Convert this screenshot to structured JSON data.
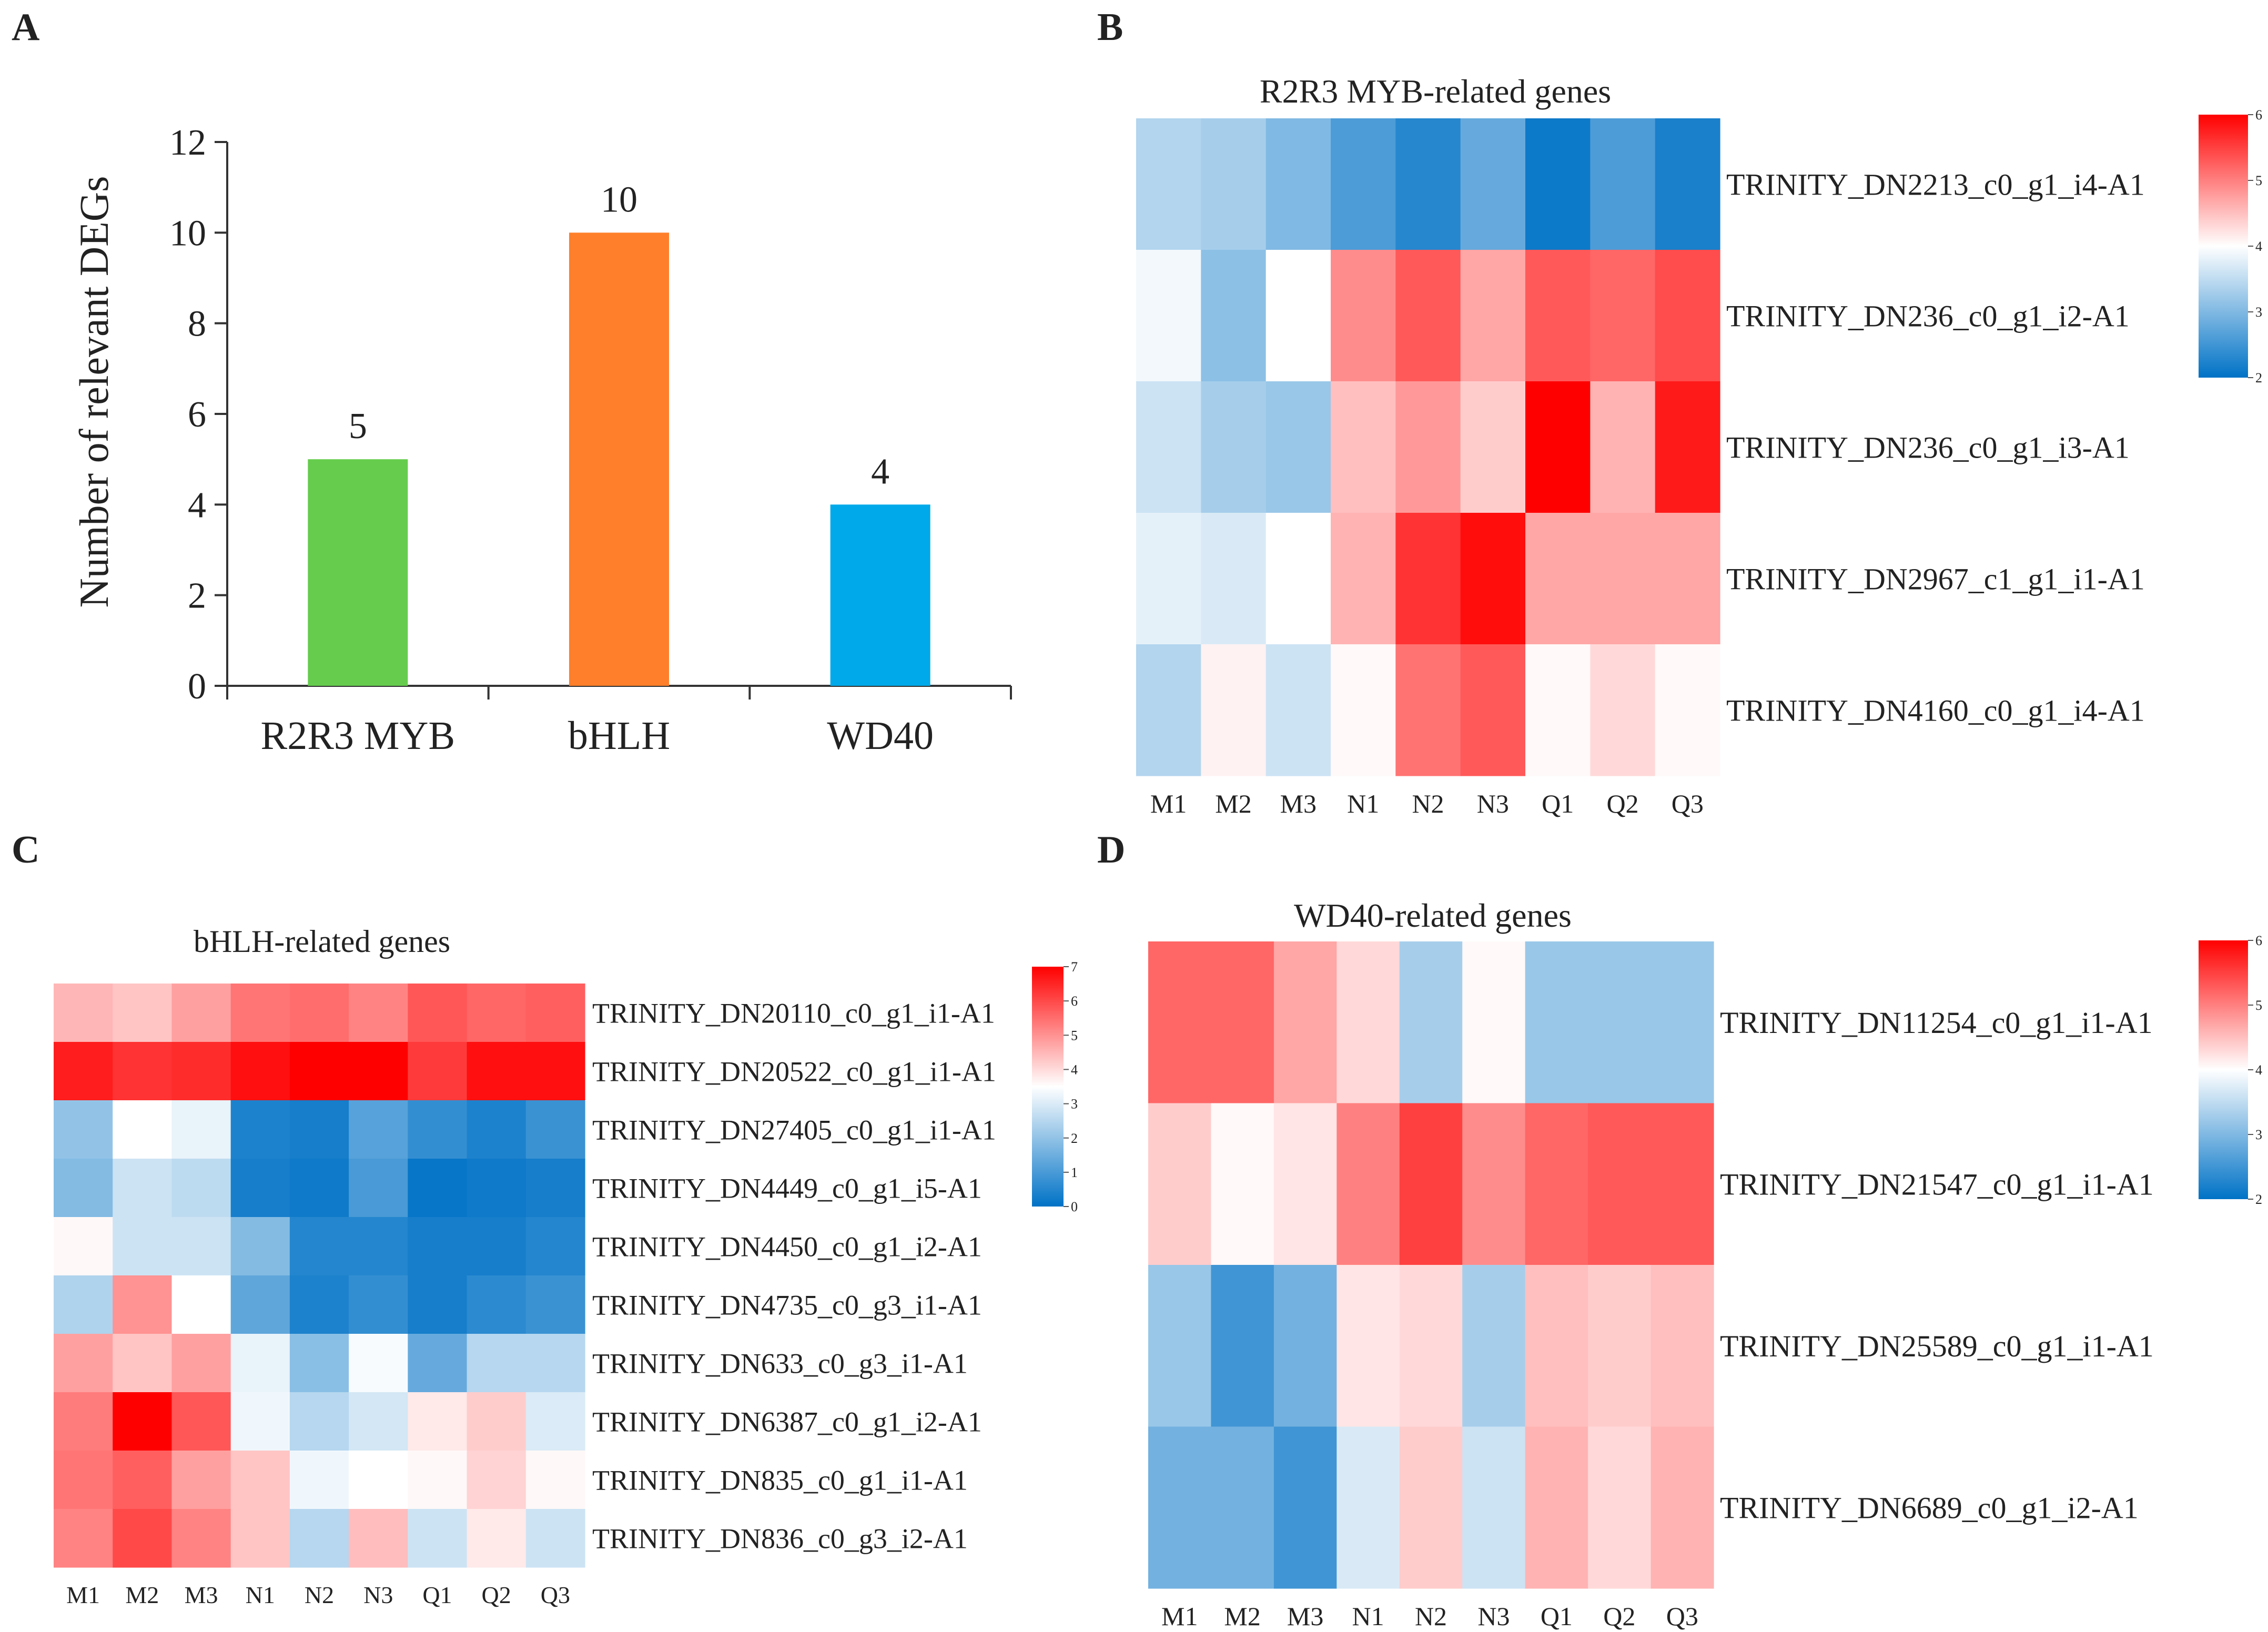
{
  "panels": [
    {
      "letter": "A"
    },
    {
      "letter": "B"
    },
    {
      "letter": "C"
    },
    {
      "letter": "D"
    }
  ],
  "chart_data": [
    {
      "panel": "A",
      "type": "bar",
      "title": "",
      "xlabel": "",
      "ylabel": "Number of relevant DEGs",
      "categories": [
        "R2R3 MYB",
        "bHLH",
        "WD40"
      ],
      "values": [
        5,
        10,
        4
      ],
      "value_labels": [
        "5",
        "10",
        "4"
      ],
      "colors": [
        "#66cc4d",
        "#ff7f2a",
        "#00a9e9"
      ],
      "ylim": [
        0,
        12
      ],
      "yticks": [
        "0",
        "2",
        "4",
        "6",
        "8",
        "10",
        "12"
      ],
      "grid": false
    },
    {
      "panel": "B",
      "type": "heatmap",
      "title": "R2R3 MYB-related genes",
      "columns": [
        "M1",
        "M2",
        "M3",
        "N1",
        "N2",
        "N3",
        "Q1",
        "Q2",
        "Q3"
      ],
      "rows": [
        "TRINITY_DN2213_c0_g1_i4-A1",
        "TRINITY_DN236_c0_g1_i2-A1",
        "TRINITY_DN236_c0_g1_i3-A1",
        "TRINITY_DN2967_c1_g1_i1-A1",
        "TRINITY_DN4160_c0_g1_i4-A1"
      ],
      "values": [
        [
          3.4,
          3.3,
          3.0,
          2.6,
          2.3,
          2.8,
          2.1,
          2.6,
          2.2
        ],
        [
          3.9,
          3.1,
          4.0,
          4.9,
          5.3,
          4.7,
          5.3,
          5.2,
          5.4
        ],
        [
          3.6,
          3.3,
          3.2,
          4.5,
          4.8,
          4.4,
          6.0,
          4.6,
          5.8
        ],
        [
          3.8,
          3.7,
          4.0,
          4.6,
          5.6,
          5.9,
          4.7,
          4.7,
          4.7
        ],
        [
          3.4,
          4.1,
          3.6,
          4.05,
          5.1,
          5.3,
          4.05,
          4.3,
          4.05
        ]
      ],
      "scale": {
        "min": 2,
        "max": 6,
        "ticks": [
          "2",
          "3",
          "4",
          "5",
          "6"
        ]
      }
    },
    {
      "panel": "C",
      "type": "heatmap",
      "title": "bHLH-related genes",
      "columns": [
        "M1",
        "M2",
        "M3",
        "N1",
        "N2",
        "N3",
        "Q1",
        "Q2",
        "Q3"
      ],
      "rows": [
        "TRINITY_DN20110_c0_g1_i1-A1",
        "TRINITY_DN20522_c0_g1_i1-A1",
        "TRINITY_DN27405_c0_g1_i1-A1",
        "TRINITY_DN4449_c0_g1_i5-A1",
        "TRINITY_DN4450_c0_g1_i2-A1",
        "TRINITY_DN4735_c0_g3_i1-A1",
        "TRINITY_DN633_c0_g3_i1-A1",
        "TRINITY_DN6387_c0_g1_i2-A1",
        "TRINITY_DN835_c0_g1_i1-A1",
        "TRINITY_DN836_c0_g3_i2-A1"
      ],
      "values": [
        [
          4.5,
          4.3,
          4.8,
          5.4,
          5.5,
          5.2,
          5.8,
          5.6,
          5.7
        ],
        [
          6.6,
          6.3,
          6.4,
          6.8,
          7.0,
          7.0,
          6.2,
          6.8,
          6.8
        ],
        [
          2.0,
          3.5,
          3.2,
          0.4,
          0.3,
          1.2,
          0.7,
          0.4,
          0.8
        ],
        [
          1.8,
          2.8,
          2.6,
          0.3,
          0.2,
          1.0,
          0.1,
          0.2,
          0.3
        ],
        [
          3.6,
          2.8,
          2.8,
          1.8,
          0.5,
          0.5,
          0.3,
          0.3,
          0.5
        ],
        [
          2.4,
          5.0,
          3.5,
          1.3,
          0.4,
          0.7,
          0.3,
          0.6,
          0.8
        ],
        [
          4.8,
          4.3,
          4.8,
          3.2,
          1.9,
          3.4,
          1.4,
          2.5,
          2.5
        ],
        [
          5.3,
          7.0,
          5.8,
          3.3,
          2.5,
          2.9,
          3.8,
          4.2,
          3.0
        ],
        [
          5.4,
          5.7,
          4.8,
          4.3,
          3.3,
          3.5,
          3.6,
          4.1,
          3.6
        ],
        [
          5.2,
          6.0,
          5.2,
          4.3,
          2.5,
          4.4,
          2.8,
          3.8,
          2.8
        ]
      ],
      "scale": {
        "min": 0,
        "max": 7,
        "ticks": [
          "0",
          "1",
          "2",
          "3",
          "4",
          "5",
          "6",
          "7"
        ]
      }
    },
    {
      "panel": "D",
      "type": "heatmap",
      "title": "WD40-related genes",
      "columns": [
        "M1",
        "M2",
        "M3",
        "N1",
        "N2",
        "N3",
        "Q1",
        "Q2",
        "Q3"
      ],
      "rows": [
        "TRINITY_DN11254_c0_g1_i1-A1",
        "TRINITY_DN21547_c0_g1_i1-A1",
        "TRINITY_DN25589_c0_g1_i1-A1",
        "TRINITY_DN6689_c0_g1_i2-A1"
      ],
      "values": [
        [
          5.2,
          5.2,
          4.7,
          4.3,
          3.3,
          4.05,
          3.2,
          3.2,
          3.2
        ],
        [
          4.4,
          4.05,
          4.2,
          5.0,
          5.5,
          4.9,
          5.2,
          5.3,
          5.3
        ],
        [
          3.2,
          2.5,
          2.9,
          4.2,
          4.3,
          3.3,
          4.5,
          4.4,
          4.5
        ],
        [
          2.9,
          2.9,
          2.5,
          3.7,
          4.4,
          3.6,
          4.6,
          4.3,
          4.6
        ]
      ],
      "scale": {
        "min": 2,
        "max": 6,
        "ticks": [
          "2",
          "3",
          "4",
          "5",
          "6"
        ]
      }
    }
  ]
}
